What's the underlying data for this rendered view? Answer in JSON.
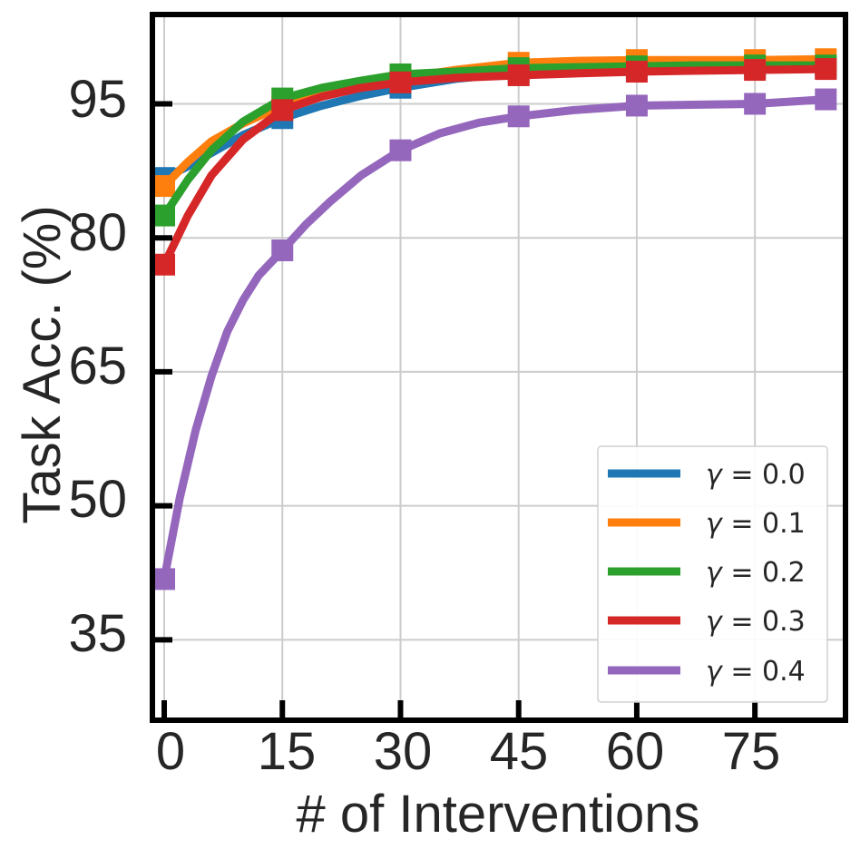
{
  "chart_data": {
    "type": "line",
    "title": "",
    "xlabel": "# of Interventions",
    "ylabel": "Task Acc. (%)",
    "xlim": [
      -1.5,
      86.5
    ],
    "ylim": [
      26,
      105
    ],
    "xticks": [
      0,
      15,
      30,
      45,
      60,
      75
    ],
    "yticks": [
      35,
      50,
      65,
      80,
      95
    ],
    "xtick_labels": [
      "0",
      "15",
      "30",
      "45",
      "60",
      "75"
    ],
    "ytick_labels": [
      "35",
      "50",
      "65",
      "80",
      "95"
    ],
    "grid": true,
    "legend_position": "lower-right",
    "marker_x": [
      0,
      15,
      30,
      45,
      60,
      75,
      84
    ],
    "series": [
      {
        "name": "γ = 0.0",
        "legend_symbol": "γ",
        "legend_value": "= 0.0",
        "color": "#1f77b4",
        "x": [
          0,
          3,
          6,
          10,
          15,
          20,
          25,
          30,
          37,
          45,
          52,
          60,
          67,
          75,
          84
        ],
        "y": [
          86.7,
          88.0,
          89.5,
          91.5,
          93.4,
          94.8,
          95.9,
          96.8,
          97.8,
          98.5,
          98.7,
          98.9,
          99.0,
          99.0,
          99.0
        ]
      },
      {
        "name": "γ = 0.1",
        "legend_symbol": "γ",
        "legend_value": "= 0.1",
        "color": "#ff7f0e",
        "x": [
          0,
          3,
          6,
          10,
          15,
          20,
          25,
          30,
          37,
          45,
          52,
          60,
          67,
          75,
          84
        ],
        "y": [
          85.8,
          88.5,
          90.8,
          92.8,
          94.8,
          96.2,
          97.2,
          97.9,
          98.8,
          99.6,
          99.8,
          99.9,
          99.9,
          99.9,
          100.0
        ]
      },
      {
        "name": "γ = 0.2",
        "legend_symbol": "γ",
        "legend_value": "= 0.2",
        "color": "#2ca02c",
        "x": [
          0,
          3,
          6,
          10,
          15,
          20,
          25,
          30,
          37,
          45,
          52,
          60,
          67,
          75,
          84
        ],
        "y": [
          82.5,
          86.5,
          89.8,
          93.0,
          95.6,
          96.8,
          97.6,
          98.3,
          98.6,
          99.0,
          99.1,
          99.2,
          99.3,
          99.3,
          99.3
        ]
      },
      {
        "name": "γ = 0.3",
        "legend_symbol": "γ",
        "legend_value": "= 0.3",
        "color": "#d62728",
        "x": [
          0,
          3,
          6,
          10,
          15,
          20,
          25,
          30,
          37,
          45,
          52,
          60,
          67,
          75,
          84
        ],
        "y": [
          77.0,
          82.5,
          87.0,
          91.0,
          94.3,
          95.8,
          96.8,
          97.4,
          97.9,
          98.2,
          98.4,
          98.6,
          98.7,
          98.8,
          98.9
        ]
      },
      {
        "name": "γ = 0.4",
        "legend_symbol": "γ",
        "legend_value": "= 0.4",
        "color": "#9467bd",
        "x": [
          0,
          2,
          4,
          6,
          8,
          10,
          12,
          15,
          18,
          21,
          25,
          30,
          35,
          40,
          45,
          52,
          60,
          67,
          75,
          84
        ],
        "y": [
          41.8,
          51.0,
          58.5,
          64.5,
          69.5,
          73.0,
          75.8,
          78.6,
          81.5,
          84.0,
          87.0,
          89.8,
          91.7,
          92.9,
          93.6,
          94.3,
          94.8,
          94.9,
          95.0,
          95.5
        ]
      }
    ]
  }
}
